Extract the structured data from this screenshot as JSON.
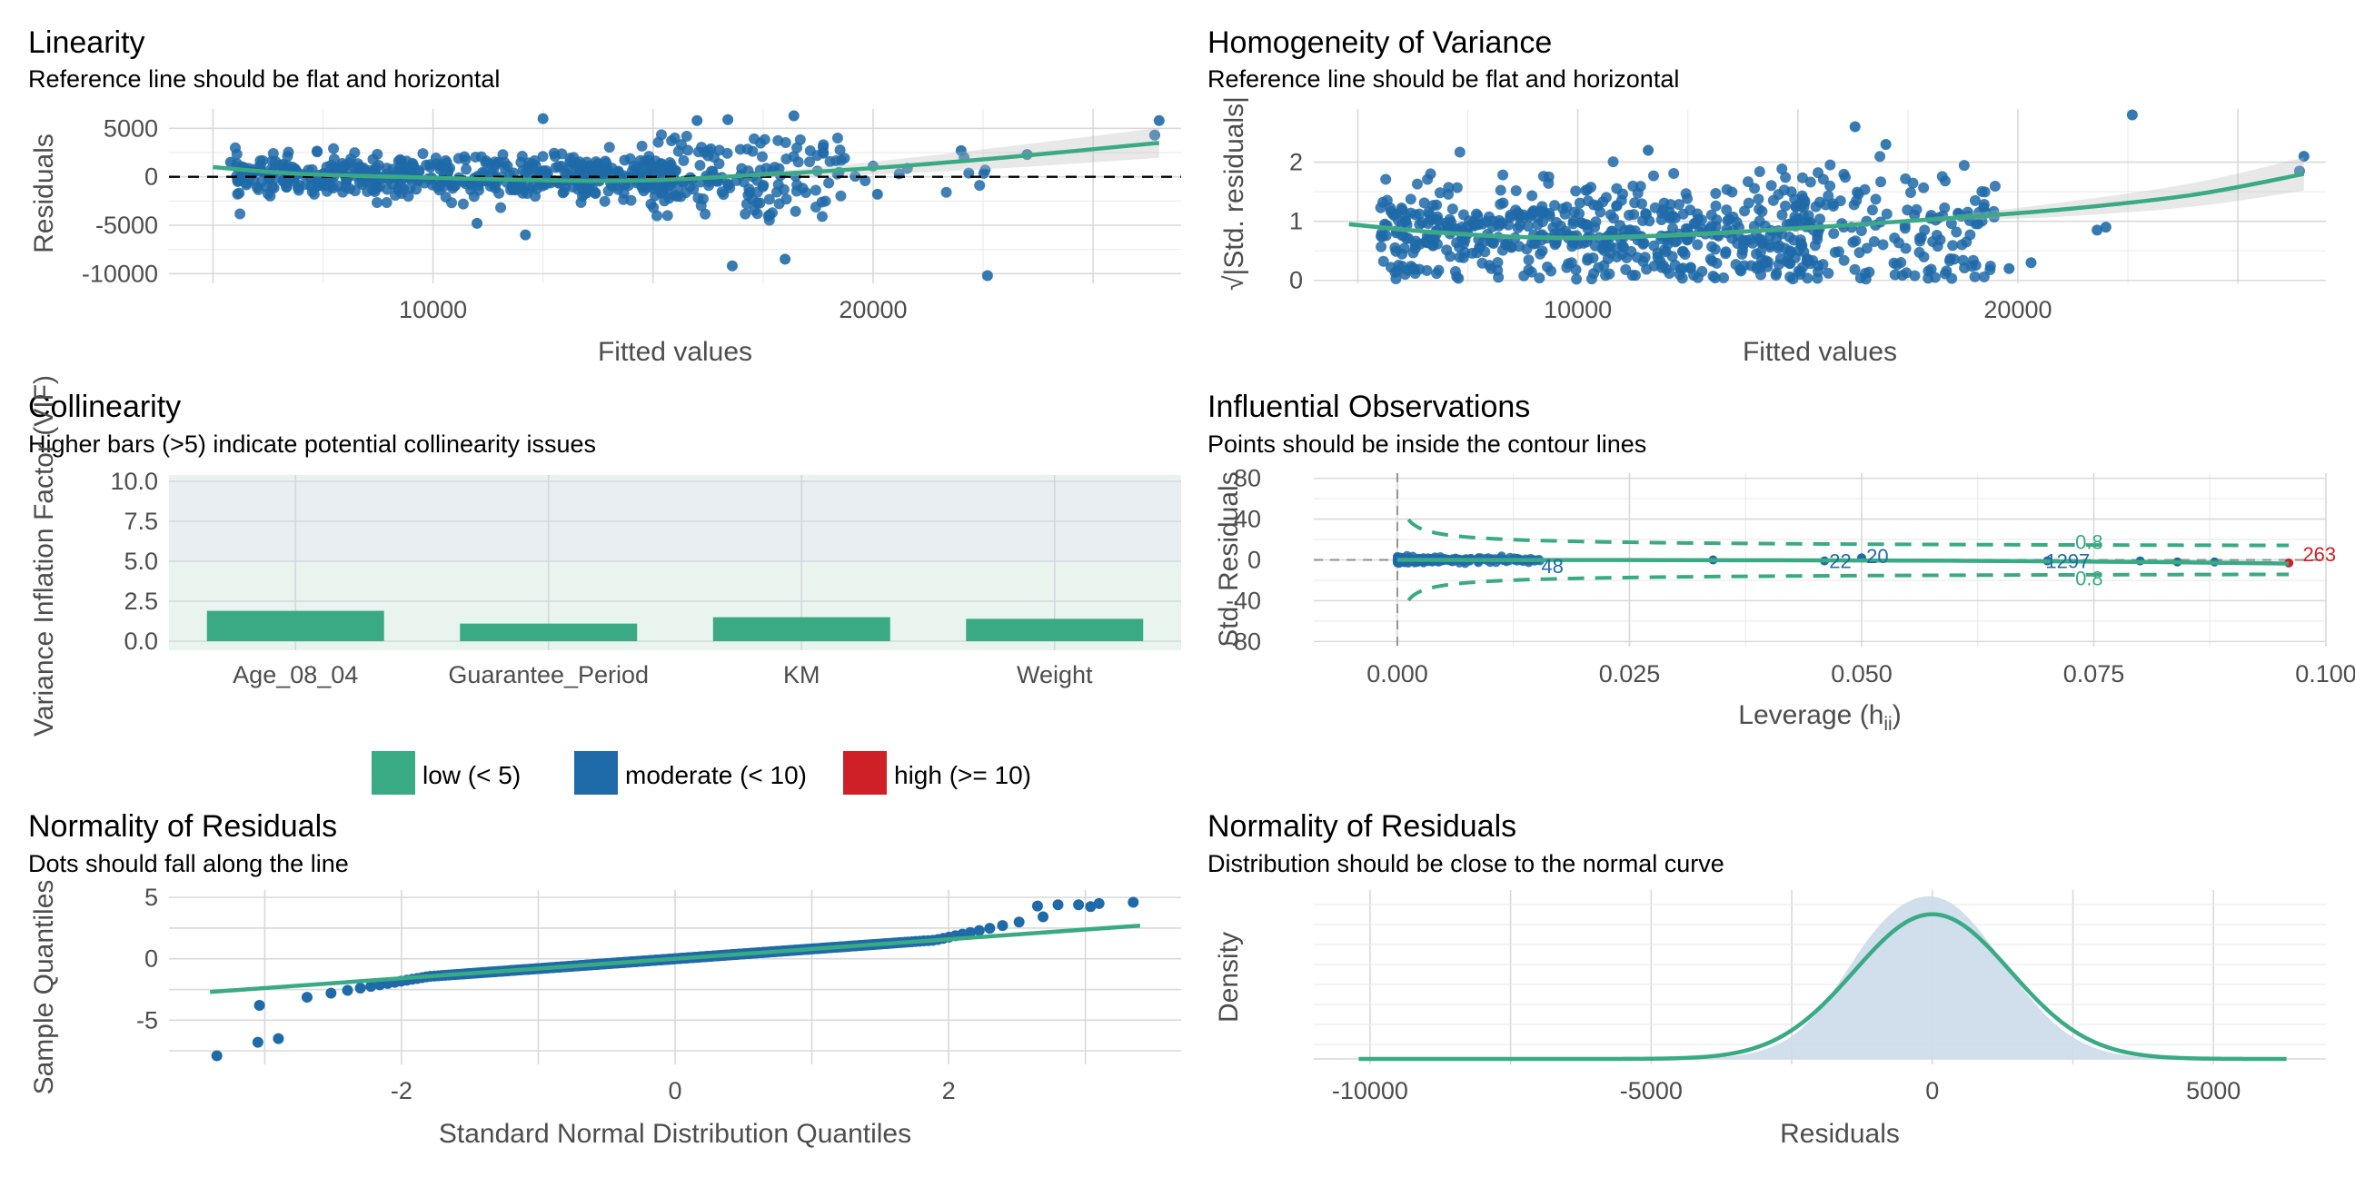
{
  "colors": {
    "green": "#3aaa84",
    "blue": "#1f6aa8",
    "red": "#cf2027",
    "band_fill": "#cfdceb",
    "collin_bg": "#eaf4ef"
  },
  "chart_data": [
    {
      "id": "linearity",
      "type": "scatter",
      "title": "Linearity",
      "subtitle": "Reference line should be flat and horizontal",
      "xlabel": "Fitted values",
      "ylabel": "Residuals",
      "xlim": [
        4000,
        27000
      ],
      "ylim": [
        -11000,
        7000
      ],
      "xticks": [
        10000,
        20000
      ],
      "yticks": [
        5000,
        0,
        -5000,
        -10000
      ],
      "reference_line": 0,
      "smooth": [
        [
          5000,
          1000
        ],
        [
          7000,
          300
        ],
        [
          10000,
          -100
        ],
        [
          13000,
          -400
        ],
        [
          15000,
          -350
        ],
        [
          17000,
          100
        ],
        [
          20000,
          900
        ],
        [
          23000,
          2000
        ],
        [
          26500,
          3500
        ]
      ],
      "outliers": [
        [
          12500,
          6000
        ],
        [
          16000,
          5800
        ],
        [
          16700,
          5900
        ],
        [
          18200,
          6300
        ],
        [
          16800,
          -9200
        ],
        [
          18000,
          -8500
        ],
        [
          22600,
          -10200
        ],
        [
          26500,
          5800
        ],
        [
          26400,
          4300
        ],
        [
          22000,
          2700
        ],
        [
          23500,
          2300
        ],
        [
          20000,
          1100
        ],
        [
          20100,
          -1800
        ],
        [
          5400,
          1500
        ],
        [
          12100,
          -6000
        ],
        [
          11000,
          -4800
        ]
      ],
      "clusters": [
        {
          "cx": [
            5500,
            15500
          ],
          "sy": 1100,
          "n": 520
        },
        {
          "cx": [
            15000,
            19500
          ],
          "sy": 2600,
          "n": 150
        },
        {
          "cx": [
            19500,
            23000
          ],
          "sy": 1200,
          "n": 10
        }
      ]
    },
    {
      "id": "homogeneity",
      "type": "scatter",
      "title": "Homogeneity of Variance",
      "subtitle": "Reference line should be flat and horizontal",
      "xlabel": "Fitted values",
      "ylabel": "√|Std. residuals|",
      "xlim": [
        4000,
        27000
      ],
      "ylim": [
        -0.05,
        2.9
      ],
      "xticks": [
        10000,
        20000
      ],
      "yticks": [
        2,
        1,
        0
      ],
      "smooth": [
        [
          4800,
          0.95
        ],
        [
          7000,
          0.8
        ],
        [
          9500,
          0.72
        ],
        [
          12000,
          0.76
        ],
        [
          15000,
          0.88
        ],
        [
          18000,
          1.03
        ],
        [
          21000,
          1.2
        ],
        [
          24000,
          1.45
        ],
        [
          26500,
          1.8
        ]
      ],
      "outliers": [
        [
          22600,
          2.8
        ],
        [
          26500,
          2.1
        ],
        [
          26400,
          1.85
        ],
        [
          16300,
          2.6
        ],
        [
          17000,
          2.3
        ],
        [
          19800,
          0.2
        ],
        [
          21800,
          0.85
        ],
        [
          22000,
          0.9
        ],
        [
          20300,
          0.3
        ],
        [
          11600,
          2.2
        ]
      ],
      "clusters": [
        {
          "cx": [
            5500,
            15500
          ],
          "sy": 0.45,
          "n": 560
        },
        {
          "cx": [
            14500,
            19500
          ],
          "sy": 0.6,
          "n": 150
        }
      ]
    },
    {
      "id": "collinearity",
      "type": "bar",
      "title": "Collinearity",
      "subtitle": "Higher bars (>5) indicate potential collinearity issues",
      "xlabel": "",
      "ylabel": "Variance Inflation Factor (VIF)",
      "ylim": [
        0,
        10
      ],
      "yticks": [
        "10.0",
        "7.5",
        "5.0",
        "2.5",
        "0.0"
      ],
      "categories": [
        "Age_08_04",
        "Guarantee_Period",
        "KM",
        "Weight"
      ],
      "values": [
        1.9,
        1.1,
        1.5,
        1.4
      ],
      "legend": [
        {
          "label": "low (< 5)",
          "color": "#3aaa84"
        },
        {
          "label": "moderate (< 10)",
          "color": "#1f6aa8"
        },
        {
          "label": "high (>= 10)",
          "color": "#cf2027"
        }
      ]
    },
    {
      "id": "influential",
      "type": "scatter",
      "title": "Influential Observations",
      "subtitle": "Points should be inside the contour lines",
      "xlabel": "Leverage (h",
      "xlabel_sub": "ii",
      "xlabel_end": ")",
      "ylabel": "Std. Residuals",
      "xlim": [
        -0.009,
        0.1
      ],
      "ylim": [
        -85,
        85
      ],
      "xticks": [
        "0.000",
        "0.025",
        "0.050",
        "0.075",
        "0.100"
      ],
      "yticks": [
        80,
        40,
        0,
        -40,
        -80
      ],
      "contour_label": "0.8",
      "point_labels": [
        {
          "text": "48",
          "x": 0.0155,
          "y": -6,
          "color": "#1f6aa8"
        },
        {
          "text": "22",
          "x": 0.0465,
          "y": -1,
          "color": "#1f6aa8"
        },
        {
          "text": "20",
          "x": 0.0505,
          "y": 4,
          "color": "#1f6aa8"
        },
        {
          "text": "1297",
          "x": 0.0698,
          "y": -1,
          "color": "#1f6aa8"
        },
        {
          "text": "263",
          "x": 0.0975,
          "y": 6,
          "color": "#cf2027"
        }
      ]
    },
    {
      "id": "qq",
      "type": "scatter",
      "title": "Normality of Residuals",
      "subtitle": "Dots should fall along the line",
      "xlabel": "Standard Normal Distribution Quantiles",
      "ylabel": "Sample Quantiles",
      "xlim": [
        -3.7,
        3.7
      ],
      "ylim": [
        -8.6,
        5.6
      ],
      "xticks": [
        -2,
        0,
        2
      ],
      "yticks": [
        5,
        0,
        -5
      ],
      "ref_line": [
        [
          -3.4,
          -2.7
        ],
        [
          3.4,
          2.7
        ]
      ]
    },
    {
      "id": "density",
      "type": "area",
      "title": "Normality of Residuals",
      "subtitle": "Distribution should be close to the normal curve",
      "xlabel": "Residuals",
      "ylabel": "Density",
      "xlim": [
        -11000,
        7000
      ],
      "xticks": [
        -10000,
        -5000,
        0,
        5000
      ],
      "normal_sd": 1390,
      "empirical_sd": 1250,
      "range": [
        -10200,
        6300
      ]
    }
  ]
}
